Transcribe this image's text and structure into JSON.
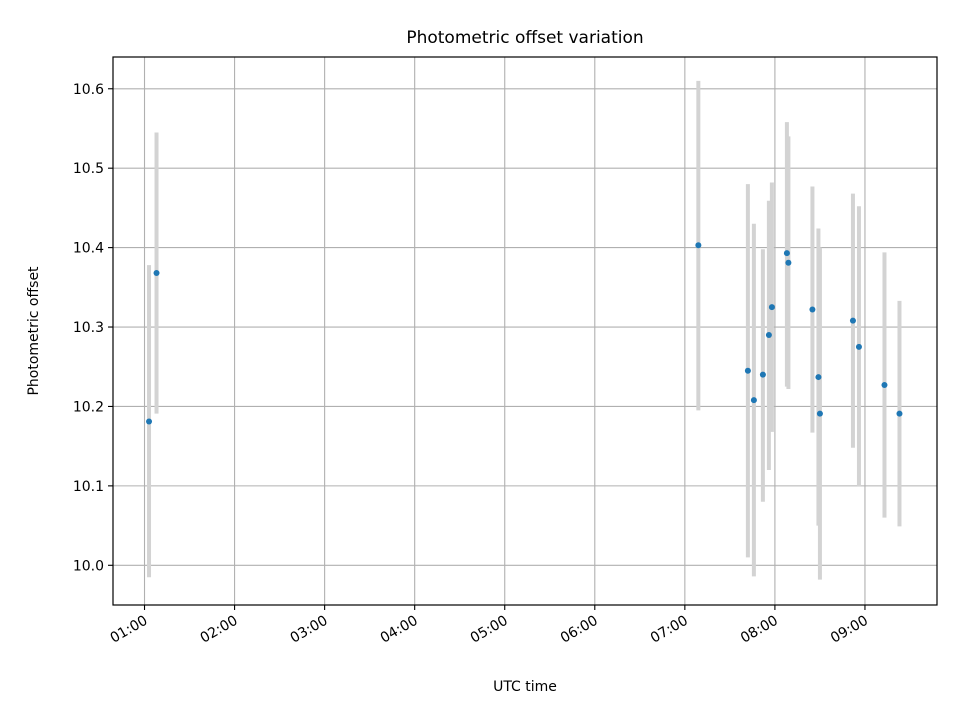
{
  "chart_data": {
    "type": "scatter",
    "title": "Photometric offset variation",
    "xlabel": "UTC time",
    "ylabel": "Photometric offset",
    "x_axis_kind": "time",
    "xlim": [
      "00:39",
      "09:48"
    ],
    "ylim": [
      9.95,
      10.64
    ],
    "xticks": [
      "01:00",
      "02:00",
      "03:00",
      "04:00",
      "05:00",
      "06:00",
      "07:00",
      "08:00",
      "09:00"
    ],
    "yticks": [
      10.0,
      10.1,
      10.2,
      10.3,
      10.4,
      10.5,
      10.6
    ],
    "ytick_labels": [
      "10.0",
      "10.1",
      "10.2",
      "10.3",
      "10.4",
      "10.5",
      "10.6"
    ],
    "grid": true,
    "legend": false,
    "colors": {
      "marker": "#1f77b4",
      "errorbar": "#d3d3d3",
      "grid": "#b0b0b0",
      "axes": "#000000"
    },
    "series": [
      {
        "marker": "point",
        "error_bars": "vertical",
        "points": [
          {
            "x": "01:03",
            "y": 10.181,
            "ylow": 9.985,
            "yhigh": 10.378
          },
          {
            "x": "01:08",
            "y": 10.368,
            "ylow": 10.191,
            "yhigh": 10.545
          },
          {
            "x": "07:09",
            "y": 10.403,
            "ylow": 10.195,
            "yhigh": 10.61
          },
          {
            "x": "07:42",
            "y": 10.245,
            "ylow": 10.01,
            "yhigh": 10.48
          },
          {
            "x": "07:46",
            "y": 10.208,
            "ylow": 9.986,
            "yhigh": 10.43
          },
          {
            "x": "07:52",
            "y": 10.24,
            "ylow": 10.08,
            "yhigh": 10.398
          },
          {
            "x": "07:56",
            "y": 10.29,
            "ylow": 10.12,
            "yhigh": 10.459
          },
          {
            "x": "07:58",
            "y": 10.325,
            "ylow": 10.168,
            "yhigh": 10.482
          },
          {
            "x": "08:08",
            "y": 10.393,
            "ylow": 10.225,
            "yhigh": 10.558
          },
          {
            "x": "08:09",
            "y": 10.381,
            "ylow": 10.222,
            "yhigh": 10.54
          },
          {
            "x": "08:25",
            "y": 10.322,
            "ylow": 10.167,
            "yhigh": 10.477
          },
          {
            "x": "08:29",
            "y": 10.237,
            "ylow": 10.05,
            "yhigh": 10.424
          },
          {
            "x": "08:30",
            "y": 10.191,
            "ylow": 9.982,
            "yhigh": 10.4
          },
          {
            "x": "08:52",
            "y": 10.308,
            "ylow": 10.148,
            "yhigh": 10.468
          },
          {
            "x": "08:56",
            "y": 10.275,
            "ylow": 10.099,
            "yhigh": 10.452
          },
          {
            "x": "09:13",
            "y": 10.227,
            "ylow": 10.06,
            "yhigh": 10.394
          },
          {
            "x": "09:23",
            "y": 10.191,
            "ylow": 10.049,
            "yhigh": 10.333
          }
        ]
      }
    ]
  }
}
